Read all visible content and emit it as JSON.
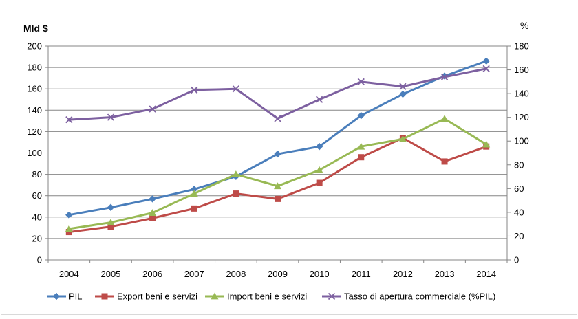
{
  "chart_data": {
    "type": "line",
    "title": "",
    "ylabel": "Mld $",
    "y2label": "%",
    "ylim": [
      0,
      200
    ],
    "y2lim": [
      0,
      180
    ],
    "grid": true,
    "legend": "bottom",
    "categories": [
      "2004",
      "2005",
      "2006",
      "2007",
      "2008",
      "2009",
      "2010",
      "2011",
      "2012",
      "2013",
      "2014"
    ],
    "yticks": [
      "0",
      "20",
      "40",
      "60",
      "80",
      "100",
      "120",
      "140",
      "160",
      "180",
      "200"
    ],
    "y2ticks": [
      "0",
      "20",
      "40",
      "60",
      "80",
      "100",
      "120",
      "140",
      "160",
      "180"
    ],
    "series": [
      {
        "name": "PIL",
        "axis": "left",
        "color": "#4a7ebb",
        "marker": "diamond",
        "values": [
          42,
          49,
          57,
          66,
          78,
          99,
          106,
          135,
          155,
          172,
          186
        ]
      },
      {
        "name": "Export beni e servizi",
        "axis": "left",
        "color": "#be4b48",
        "marker": "square",
        "values": [
          26,
          31,
          39,
          48,
          62,
          57,
          72,
          96,
          114,
          92,
          106
        ]
      },
      {
        "name": "Import beni e servizi",
        "axis": "left",
        "color": "#98b954",
        "marker": "triangle",
        "values": [
          29,
          35,
          44,
          62,
          80,
          69,
          84,
          106,
          113,
          132,
          108
        ]
      },
      {
        "name": "Tasso di apertura commerciale (%PIL)",
        "axis": "right",
        "color": "#7d60a0",
        "marker": "x",
        "values": [
          118,
          120,
          127,
          143,
          144,
          119,
          135,
          150,
          146,
          154,
          161
        ]
      }
    ]
  }
}
